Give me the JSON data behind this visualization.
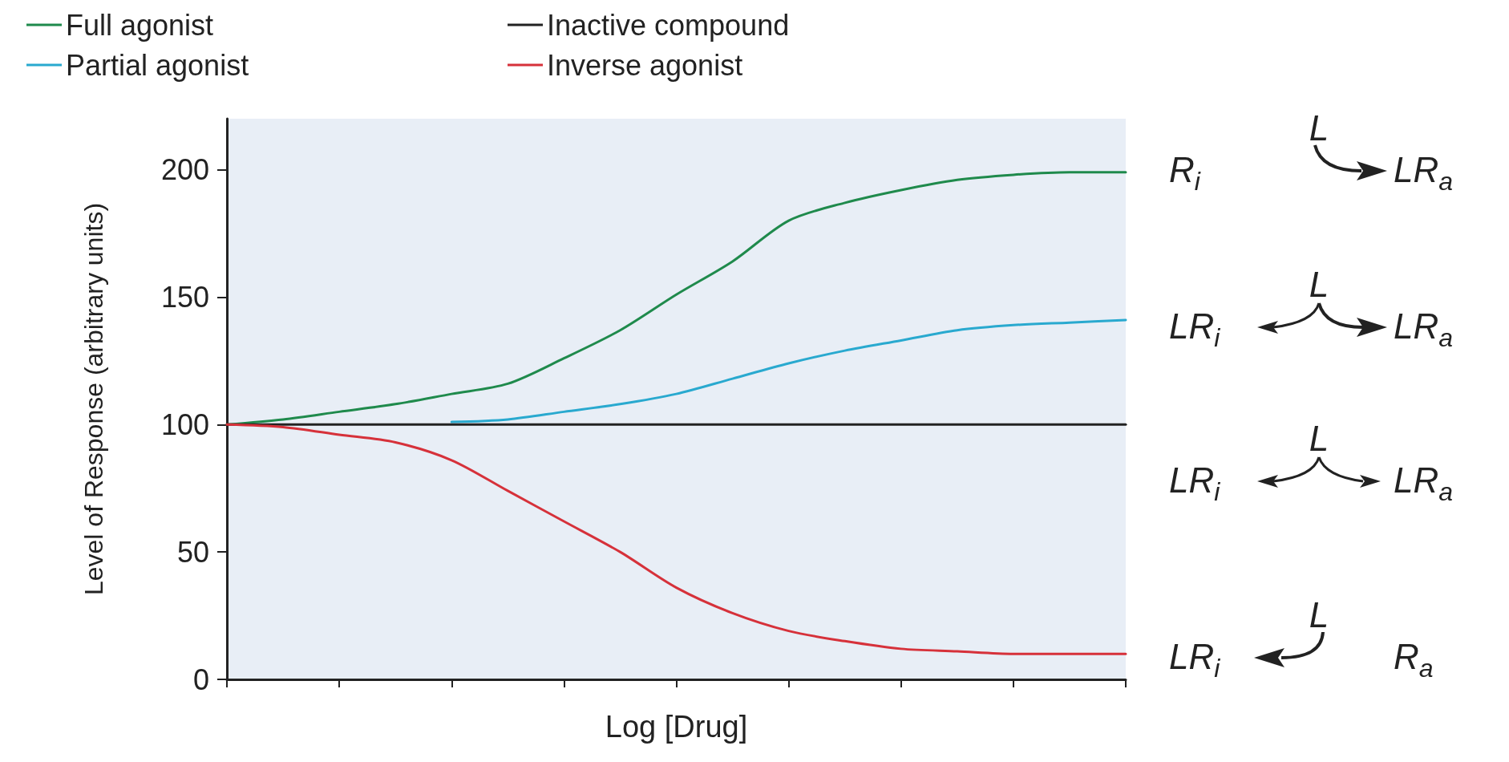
{
  "chart_data": {
    "type": "line",
    "xlabel": "Log [Drug]",
    "ylabel": "Level of Response (arbitrary units)",
    "categories": [
      null,
      null,
      null,
      null,
      null,
      null,
      null,
      null,
      null,
      null,
      null,
      null,
      null,
      null,
      null,
      null,
      null
    ],
    "series": [
      {
        "name": "Full agonist",
        "color": "#1f8a4c",
        "values": [
          100,
          102,
          105,
          108,
          112,
          116,
          126,
          137,
          151,
          164,
          180,
          187,
          192,
          196,
          198,
          199,
          199
        ]
      },
      {
        "name": "Partial agonist",
        "color": "#29a9cf",
        "values": [
          null,
          null,
          null,
          null,
          101,
          102,
          105,
          108,
          112,
          118,
          124,
          129,
          133,
          137,
          139,
          140,
          141
        ]
      },
      {
        "name": "Inactive compound",
        "color": "#222222",
        "values": [
          100,
          100,
          100,
          100,
          100,
          100,
          100,
          100,
          100,
          100,
          100,
          100,
          100,
          100,
          100,
          100,
          100
        ]
      },
      {
        "name": "Inverse agonist",
        "color": "#d6313a",
        "values": [
          100,
          99,
          96,
          93,
          86,
          74,
          62,
          50,
          36,
          26,
          19,
          15,
          12,
          11,
          10,
          10,
          10
        ]
      }
    ],
    "ylim": [
      0,
      220
    ],
    "yticks": [
      0,
      50,
      100,
      150,
      200
    ],
    "grid": false,
    "legend": "top left",
    "marker": "none",
    "line_style": "solid",
    "annotations": [
      "L",
      "R$_{i}$",
      "LR$_{a}$",
      "L",
      "LR$_{i}$",
      "LR$_{a}$",
      "L",
      "LR$_{i}$",
      "LR$_{a}$",
      "L",
      "LR$_{i}$",
      "R$_{a}$"
    ]
  }
}
